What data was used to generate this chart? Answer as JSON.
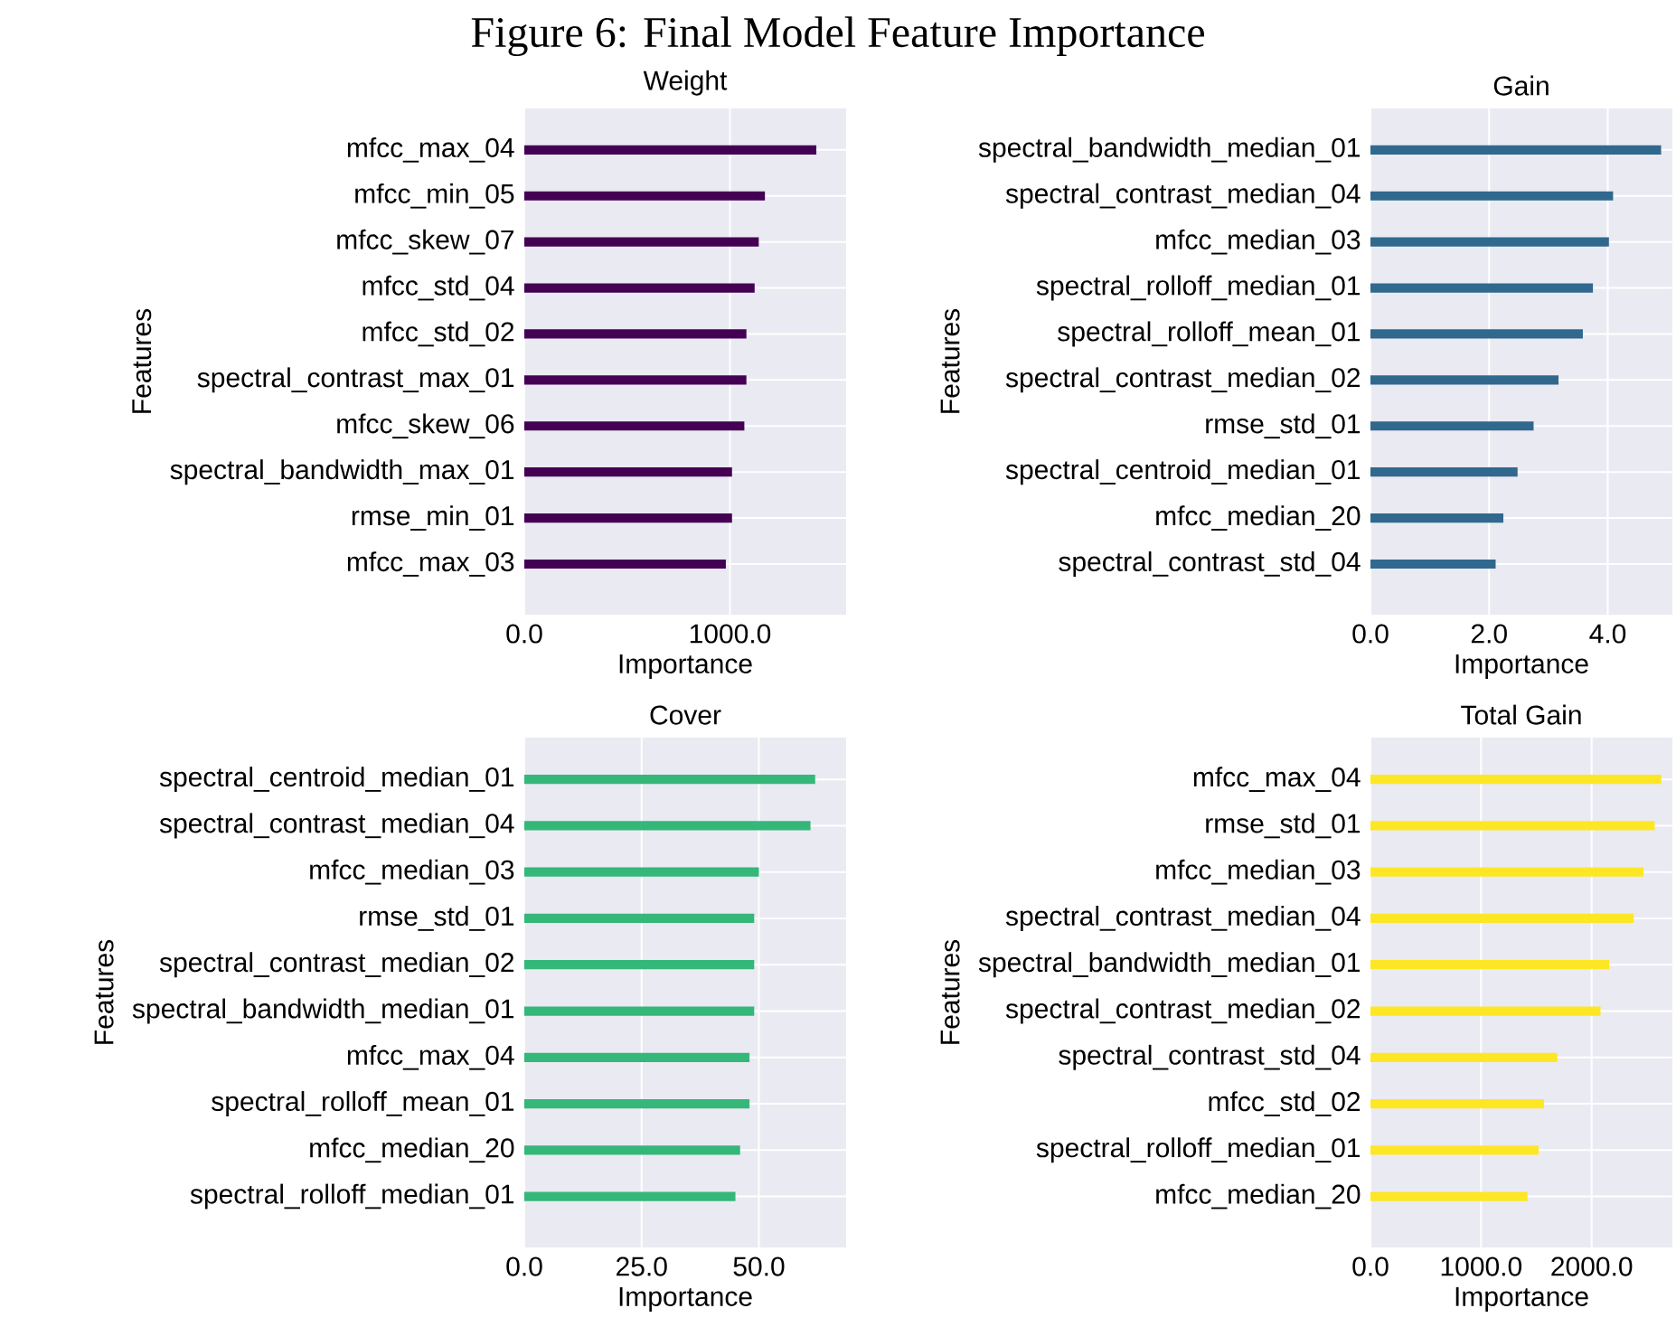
{
  "chart_data": [
    {
      "type": "bar",
      "orientation": "horizontal",
      "title": "Weight",
      "xlabel": "Importance",
      "ylabel": "Features",
      "annotations": [
        "Figure 6: Final Model Feature Importance"
      ],
      "grid": true,
      "color": "#440154",
      "categories": [
        "mfcc_max_04",
        "mfcc_min_05",
        "mfcc_skew_07",
        "mfcc_std_04",
        "mfcc_std_02",
        "spectral_contrast_max_01",
        "mfcc_skew_06",
        "spectral_bandwidth_max_01",
        "rmse_min_01",
        "mfcc_max_03"
      ],
      "values": [
        1420,
        1170,
        1140,
        1120,
        1080,
        1080,
        1070,
        1010,
        1010,
        980
      ],
      "xlim": [
        0,
        1565
      ],
      "xticks": [
        {
          "value": 0,
          "label": "0.0"
        },
        {
          "value": 1000,
          "label": "1000.0"
        }
      ]
    },
    {
      "type": "bar",
      "orientation": "horizontal",
      "title": "Gain",
      "xlabel": "Importance",
      "ylabel": "Features",
      "grid": true,
      "color": "#31688e",
      "categories": [
        "spectral_bandwidth_median_01",
        "spectral_contrast_median_04",
        "mfcc_median_03",
        "spectral_rolloff_median_01",
        "spectral_rolloff_mean_01",
        "spectral_contrast_median_02",
        "rmse_std_01",
        "spectral_centroid_median_01",
        "mfcc_median_20",
        "spectral_contrast_std_04"
      ],
      "values": [
        4.9,
        4.09,
        4.02,
        3.75,
        3.58,
        3.17,
        2.75,
        2.48,
        2.24,
        2.11
      ],
      "xlim": [
        0,
        5.09
      ],
      "xticks": [
        {
          "value": 0,
          "label": "0.0"
        },
        {
          "value": 2,
          "label": "2.0"
        },
        {
          "value": 4,
          "label": "4.0"
        }
      ]
    },
    {
      "type": "bar",
      "orientation": "horizontal",
      "title": "Cover",
      "xlabel": "Importance",
      "ylabel": "Features",
      "grid": true,
      "color": "#35b779",
      "categories": [
        "spectral_centroid_median_01",
        "spectral_contrast_median_04",
        "mfcc_median_03",
        "rmse_std_01",
        "spectral_contrast_median_02",
        "spectral_bandwidth_median_01",
        "mfcc_max_04",
        "spectral_rolloff_mean_01",
        "mfcc_median_20",
        "spectral_rolloff_median_01"
      ],
      "values": [
        62,
        61,
        50,
        49,
        49,
        49,
        48,
        48,
        46,
        45
      ],
      "xlim": [
        0,
        68.6
      ],
      "xticks": [
        {
          "value": 0,
          "label": "0.0"
        },
        {
          "value": 25,
          "label": "25.0"
        },
        {
          "value": 50,
          "label": "50.0"
        }
      ]
    },
    {
      "type": "bar",
      "orientation": "horizontal",
      "title": "Total Gain",
      "xlabel": "Importance",
      "ylabel": "Features",
      "grid": true,
      "color": "#fde725",
      "categories": [
        "mfcc_max_04",
        "rmse_std_01",
        "mfcc_median_03",
        "spectral_contrast_median_04",
        "spectral_bandwidth_median_01",
        "spectral_contrast_median_02",
        "spectral_contrast_std_04",
        "mfcc_std_02",
        "spectral_rolloff_median_01",
        "mfcc_median_20"
      ],
      "values": [
        2630,
        2570,
        2470,
        2380,
        2160,
        2080,
        1690,
        1570,
        1520,
        1420
      ],
      "xlim": [
        0,
        2730
      ],
      "xticks": [
        {
          "value": 0,
          "label": "0.0"
        },
        {
          "value": 1000,
          "label": "1000.0"
        },
        {
          "value": 2000,
          "label": "2000.0"
        }
      ]
    }
  ]
}
